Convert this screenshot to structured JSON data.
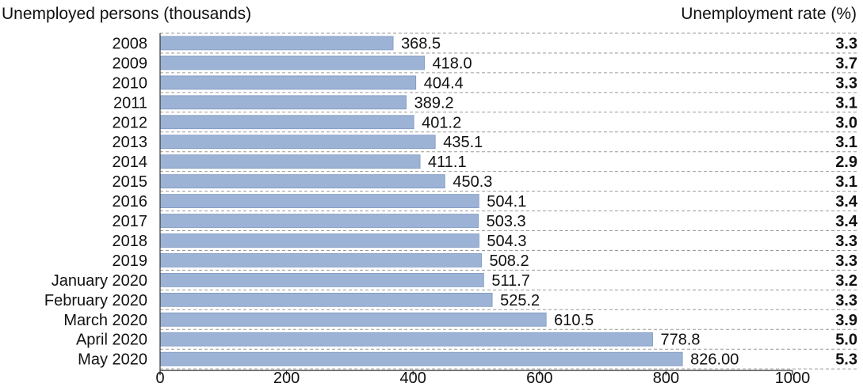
{
  "chart_data": {
    "type": "bar",
    "orientation": "horizontal",
    "left_header": "Unemployed persons (thousands)",
    "right_header": "Unemployment rate (%)",
    "categories": [
      "2008",
      "2009",
      "2010",
      "2011",
      "2012",
      "2013",
      "2014",
      "2015",
      "2016",
      "2017",
      "2018",
      "2019",
      "January 2020",
      "February 2020",
      "March 2020",
      "April 2020",
      "May 2020"
    ],
    "values": [
      368.5,
      418.0,
      404.4,
      389.2,
      401.2,
      435.1,
      411.1,
      450.3,
      504.1,
      503.3,
      504.3,
      508.2,
      511.7,
      525.2,
      610.5,
      778.8,
      826.0
    ],
    "value_labels": [
      "368.5",
      "418.0",
      "404.4",
      "389.2",
      "401.2",
      "435.1",
      "411.1",
      "450.3",
      "504.1",
      "503.3",
      "504.3",
      "508.2",
      "511.7",
      "525.2",
      "610.5",
      "778.8",
      "826.00"
    ],
    "rates": [
      "3.3",
      "3.7",
      "3.3",
      "3.1",
      "3.0",
      "3.1",
      "2.9",
      "3.1",
      "3.4",
      "3.4",
      "3.3",
      "3.3",
      "3.2",
      "3.3",
      "3.9",
      "5.0",
      "5.3"
    ],
    "xlim": [
      0,
      1000
    ],
    "xticks": [
      "0",
      "200",
      "400",
      "600",
      "800",
      "1000"
    ],
    "grid": "dashed row separators",
    "bar_color": "#9db3d6",
    "bar_edge_color": "#7d96c0"
  }
}
